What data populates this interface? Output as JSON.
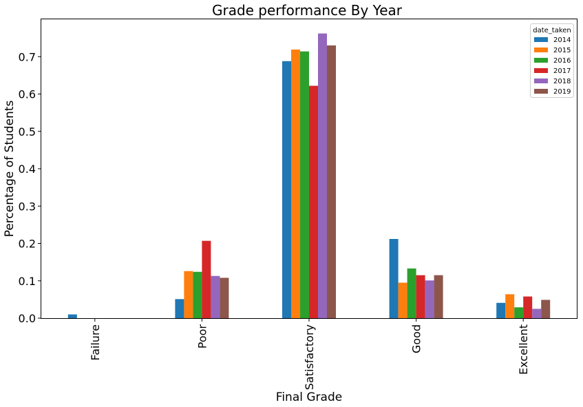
{
  "chart_data": {
    "type": "bar",
    "title": "Grade performance By Year",
    "xlabel": "Final Grade",
    "ylabel": "Percentage of Students",
    "ylim": [
      0,
      0.8
    ],
    "yticks": [
      "0.0",
      "0.1",
      "0.2",
      "0.3",
      "0.4",
      "0.5",
      "0.6",
      "0.7"
    ],
    "categories": [
      "Failure",
      "Poor",
      "Satisfactory",
      "Good",
      "Excellent"
    ],
    "legend": {
      "title": "date_taken",
      "placement": "top-right"
    },
    "grid": false,
    "series": [
      {
        "name": "2014",
        "color": "#1f77b4",
        "values": [
          0.01,
          0.051,
          0.688,
          0.212,
          0.041
        ]
      },
      {
        "name": "2015",
        "color": "#ff7f0e",
        "values": [
          0.0,
          0.126,
          0.719,
          0.095,
          0.064
        ]
      },
      {
        "name": "2016",
        "color": "#2ca02c",
        "values": [
          0.0,
          0.124,
          0.714,
          0.133,
          0.029
        ]
      },
      {
        "name": "2017",
        "color": "#d62728",
        "values": [
          0.0,
          0.207,
          0.622,
          0.115,
          0.058
        ]
      },
      {
        "name": "2018",
        "color": "#9467bd",
        "values": [
          0.0,
          0.113,
          0.762,
          0.101,
          0.025
        ]
      },
      {
        "name": "2019",
        "color": "#8c564b",
        "values": [
          0.0,
          0.108,
          0.73,
          0.115,
          0.049
        ]
      }
    ]
  }
}
